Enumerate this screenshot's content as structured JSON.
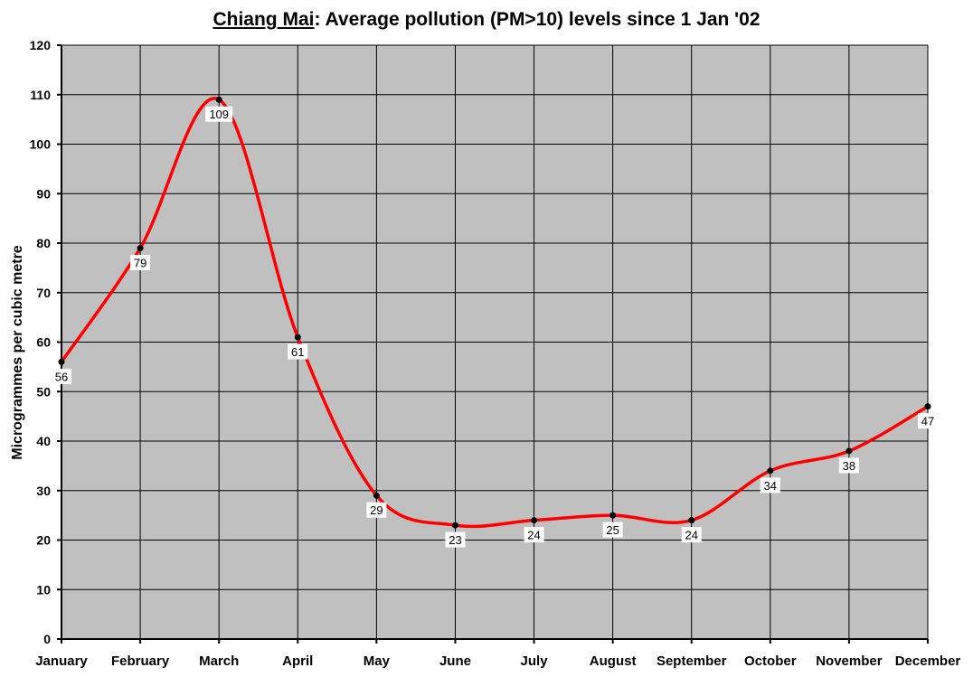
{
  "chart_data": {
    "type": "line",
    "title_place": "Chiang Mai",
    "title_rest": ": Average pollution (PM>10) levels since 1 Jan '02",
    "ylabel": "Microgrammes per cubic metre",
    "xlabel": "",
    "categories": [
      "January",
      "February",
      "March",
      "April",
      "May",
      "June",
      "July",
      "August",
      "September",
      "October",
      "November",
      "December"
    ],
    "values": [
      56,
      79,
      109,
      61,
      29,
      23,
      24,
      25,
      24,
      34,
      38,
      47
    ],
    "labels": [
      "56",
      "79",
      "109",
      "61",
      "29",
      "23",
      "24",
      "25",
      "24",
      "34",
      "38",
      "47"
    ],
    "ylim": [
      0,
      120
    ],
    "ytick_step": 10,
    "grid": true,
    "legend": "none",
    "colors": {
      "line": "#ff0000",
      "plot_bg": "#c0c0c0",
      "marker": "#000000"
    }
  }
}
